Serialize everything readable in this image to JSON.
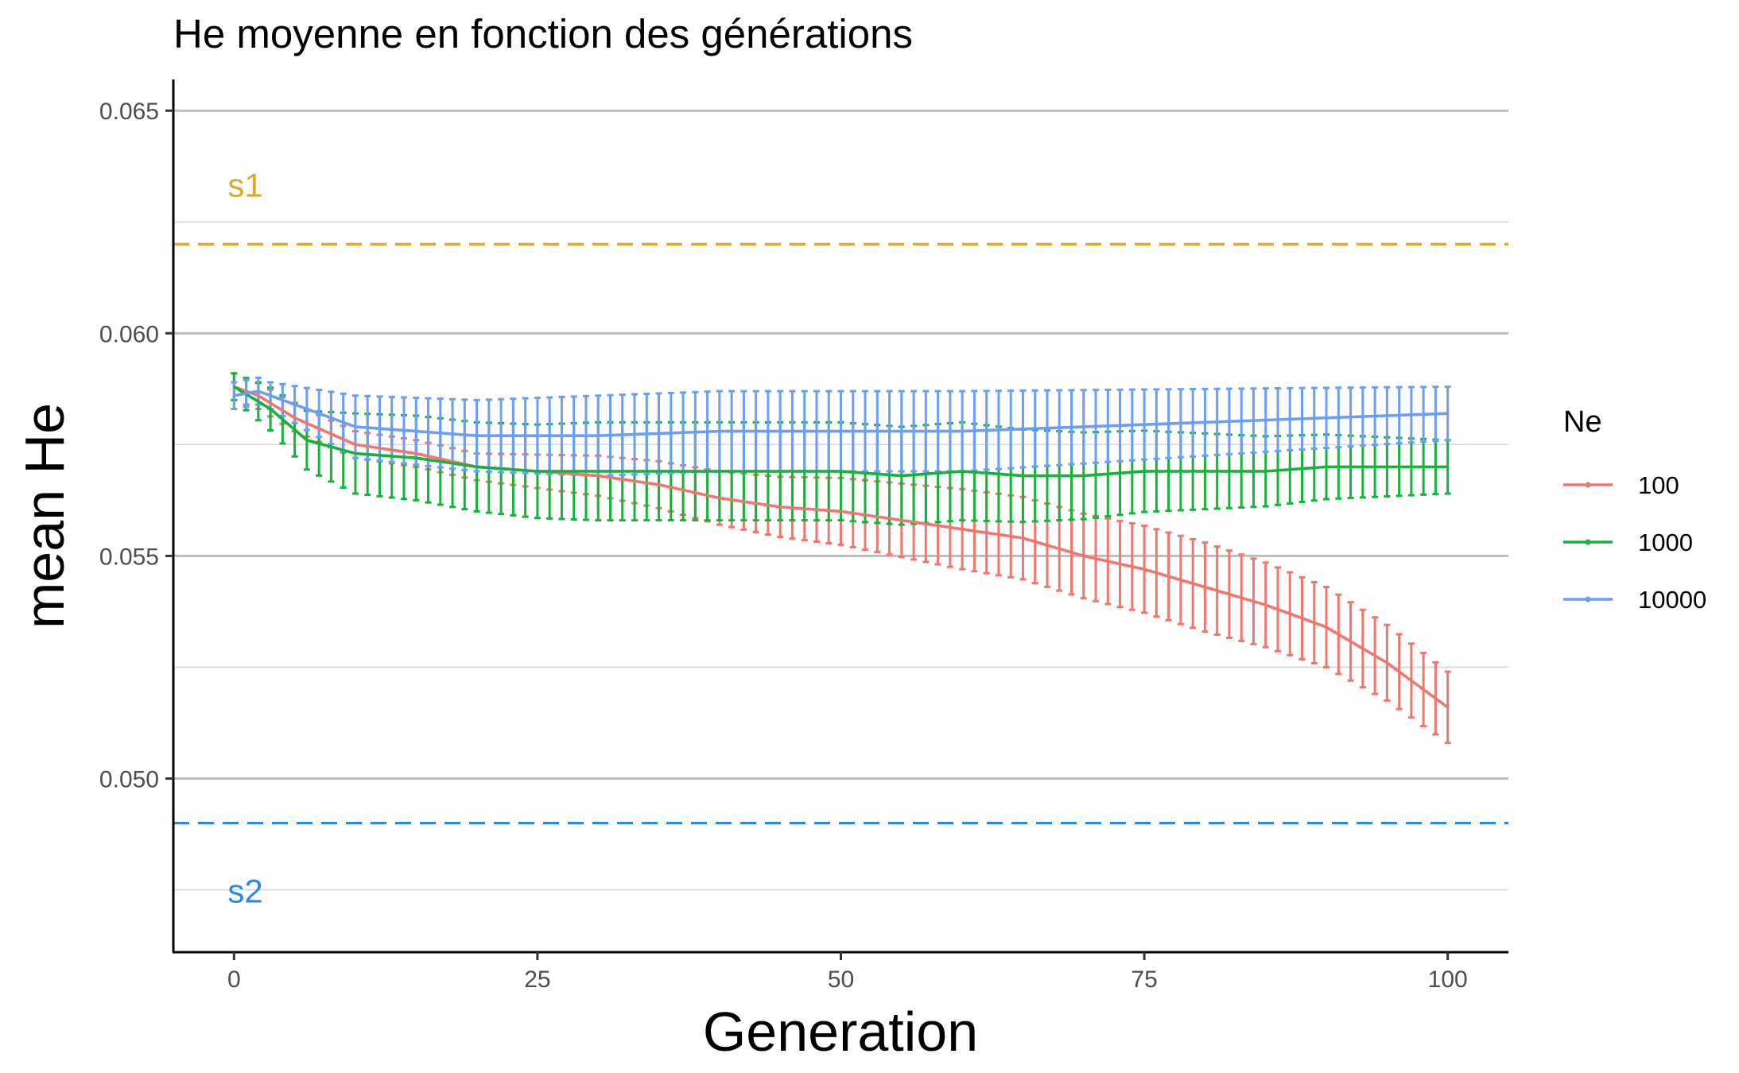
{
  "chart_data": {
    "type": "line",
    "title": "He moyenne en fonction des générations",
    "xlabel": "Generation",
    "ylabel": "mean He",
    "xlim": [
      -5,
      105
    ],
    "ylim": [
      0.0461,
      0.0657
    ],
    "x_ticks": [
      0,
      25,
      50,
      75,
      100
    ],
    "x_tick_labels": [
      "0",
      "25",
      "50",
      "75",
      "100"
    ],
    "y_ticks": [
      0.05,
      0.055,
      0.06,
      0.065
    ],
    "y_tick_labels": [
      "0.050",
      "0.055",
      "0.060",
      "0.065"
    ],
    "grid": "horizontal",
    "legend": {
      "title": "Ne",
      "position": "right"
    },
    "reference_lines": [
      {
        "label": "s1",
        "y": 0.062,
        "color": "#D9A92E",
        "style": "dashed"
      },
      {
        "label": "s2",
        "y": 0.049,
        "color": "#2E86DE",
        "style": "dashed"
      }
    ],
    "x_step": 1,
    "series": [
      {
        "name": "100",
        "color": "#F07670",
        "mean_anchors": [
          [
            0,
            0.0588
          ],
          [
            2,
            0.0586
          ],
          [
            5,
            0.0581
          ],
          [
            10,
            0.0575
          ],
          [
            15,
            0.0573
          ],
          [
            20,
            0.057
          ],
          [
            25,
            0.0569
          ],
          [
            30,
            0.0568
          ],
          [
            35,
            0.0566
          ],
          [
            40,
            0.0563
          ],
          [
            45,
            0.0561
          ],
          [
            50,
            0.056
          ],
          [
            55,
            0.0558
          ],
          [
            60,
            0.0556
          ],
          [
            65,
            0.0554
          ],
          [
            70,
            0.055
          ],
          [
            75,
            0.0547
          ],
          [
            80,
            0.0543
          ],
          [
            85,
            0.0539
          ],
          [
            90,
            0.0534
          ],
          [
            95,
            0.0526
          ],
          [
            100,
            0.0516
          ]
        ],
        "halfwidth_anchors": [
          [
            0,
            0.0003
          ],
          [
            20,
            0.0003
          ],
          [
            40,
            0.0006
          ],
          [
            60,
            0.0009
          ],
          [
            80,
            0.001
          ],
          [
            100,
            0.0008
          ]
        ]
      },
      {
        "name": "1000",
        "color": "#16B33C",
        "mean_anchors": [
          [
            0,
            0.0588
          ],
          [
            3,
            0.0583
          ],
          [
            6,
            0.0576
          ],
          [
            10,
            0.0573
          ],
          [
            15,
            0.0572
          ],
          [
            20,
            0.057
          ],
          [
            25,
            0.0569
          ],
          [
            30,
            0.0569
          ],
          [
            35,
            0.0569
          ],
          [
            40,
            0.0569
          ],
          [
            45,
            0.0569
          ],
          [
            50,
            0.0569
          ],
          [
            55,
            0.0568
          ],
          [
            60,
            0.0569
          ],
          [
            65,
            0.0568
          ],
          [
            70,
            0.0568
          ],
          [
            75,
            0.0569
          ],
          [
            80,
            0.0569
          ],
          [
            85,
            0.0569
          ],
          [
            90,
            0.057
          ],
          [
            95,
            0.057
          ],
          [
            100,
            0.057
          ]
        ],
        "halfwidth_anchors": [
          [
            0,
            0.0003
          ],
          [
            10,
            0.0009
          ],
          [
            30,
            0.0011
          ],
          [
            60,
            0.0011
          ],
          [
            100,
            0.0006
          ]
        ]
      },
      {
        "name": "10000",
        "color": "#6C9EF8",
        "mean_anchors": [
          [
            0,
            0.0586
          ],
          [
            2,
            0.0587
          ],
          [
            5,
            0.0584
          ],
          [
            10,
            0.0579
          ],
          [
            15,
            0.0578
          ],
          [
            20,
            0.0577
          ],
          [
            25,
            0.0577
          ],
          [
            30,
            0.0577
          ],
          [
            40,
            0.0578
          ],
          [
            50,
            0.0578
          ],
          [
            60,
            0.0578
          ],
          [
            70,
            0.0579
          ],
          [
            80,
            0.058
          ],
          [
            90,
            0.0581
          ],
          [
            100,
            0.0582
          ]
        ],
        "halfwidth_anchors": [
          [
            0,
            0.0003
          ],
          [
            3,
            0.0003
          ],
          [
            10,
            0.0007
          ],
          [
            30,
            0.0009
          ],
          [
            60,
            0.0009
          ],
          [
            100,
            0.0006
          ]
        ]
      }
    ]
  }
}
